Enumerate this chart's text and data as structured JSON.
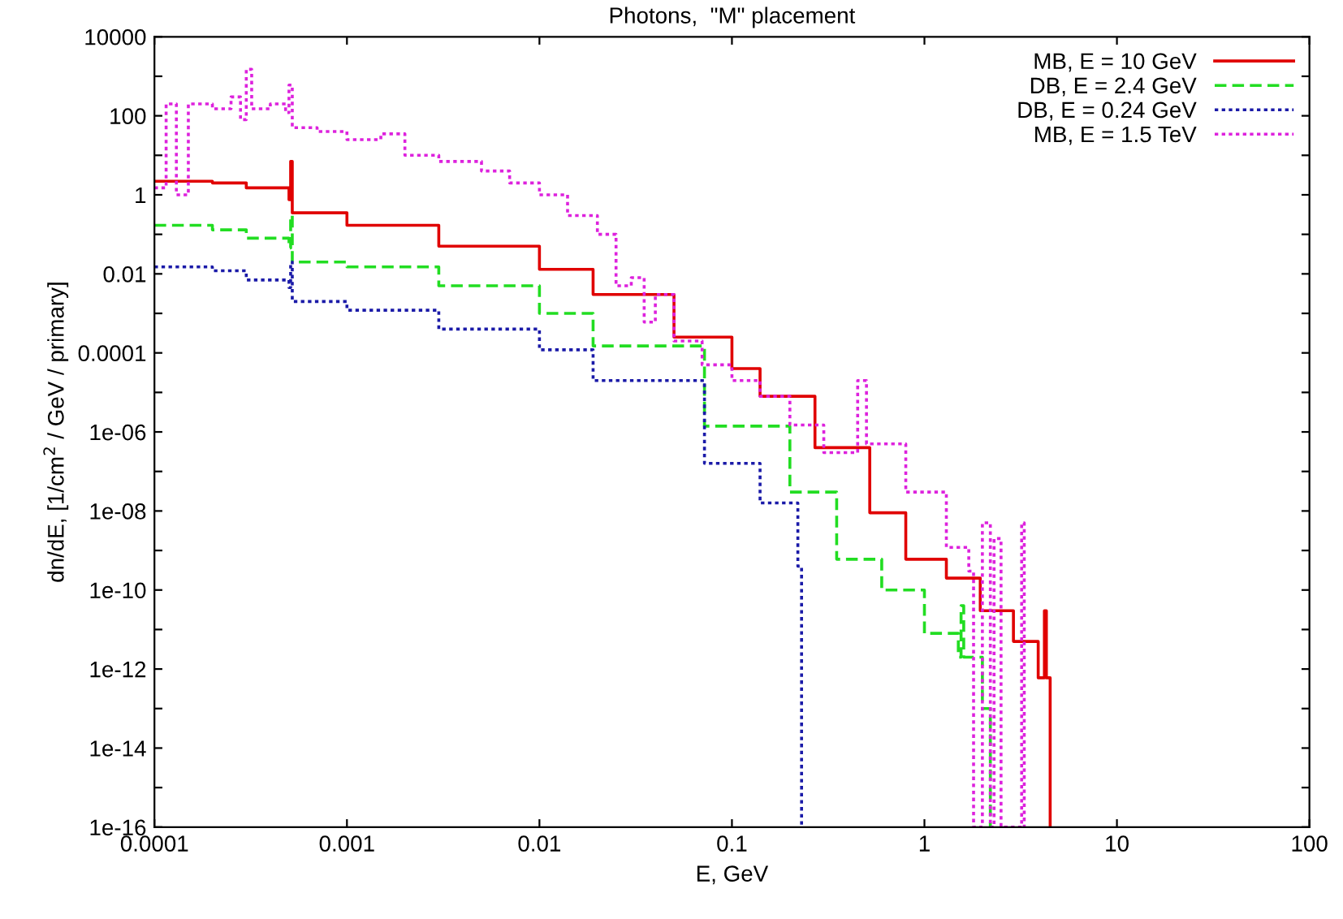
{
  "chart_data": {
    "type": "step",
    "title": "Photons,  \"M\" placement",
    "xlabel": "E, GeV",
    "ylabel": "dn/dE, [1/cm$^{2}$ / GeV / primary]",
    "log": "xy",
    "grid": false,
    "legend": "top right",
    "xlim": [
      0.0001,
      100
    ],
    "ylim": [
      1e-16,
      10000
    ],
    "xticks": [
      {
        "value": 0.0001,
        "label": "0.0001"
      },
      {
        "value": 0.001,
        "label": "0.001"
      },
      {
        "value": 0.01,
        "label": "0.01"
      },
      {
        "value": 0.1,
        "label": "0.1"
      },
      1,
      10,
      100
    ],
    "yticks": [
      10000,
      {
        "value": 1000,
        "label": null
      },
      100,
      {
        "value": 10,
        "label": null
      },
      1,
      {
        "value": 0.1,
        "label": null
      },
      {
        "value": 0.01,
        "label": "0.01"
      },
      {
        "value": 0.001,
        "label": null
      },
      {
        "value": 0.0001,
        "label": "0.0001"
      },
      {
        "value": 1e-05,
        "label": null
      },
      {
        "value": 1e-06,
        "label": "1e-06"
      },
      {
        "value": 1e-07,
        "label": null
      },
      {
        "value": 1e-08,
        "label": "1e-08"
      },
      {
        "value": 1e-09,
        "label": null
      },
      {
        "value": 1e-10,
        "label": "1e-10"
      },
      {
        "value": 1e-11,
        "label": null
      },
      {
        "value": 1e-12,
        "label": "1e-12"
      },
      {
        "value": 1e-13,
        "label": null
      },
      {
        "value": 1e-14,
        "label": "1e-14"
      },
      {
        "value": 1e-15,
        "label": null
      },
      {
        "value": 1e-16,
        "label": "1e-16"
      }
    ],
    "series": [
      {
        "name": "MB, E = 10 GeV",
        "color": "#e00000",
        "line_style": "solid",
        "x": [
          0.0001,
          0.0002,
          0.0003,
          0.0005,
          0.00051,
          0.00052,
          0.001,
          0.003,
          0.01,
          0.019,
          0.05,
          0.1,
          0.14,
          0.27,
          0.52,
          0.8,
          1.3,
          1.95,
          2.9,
          3.9,
          4.2,
          4.3,
          4.5
        ],
        "values": [
          2.2,
          2.0,
          1.5,
          0.75,
          7,
          0.35,
          0.17,
          0.05,
          0.013,
          0.003,
          0.00025,
          4e-05,
          8e-06,
          4e-07,
          9e-09,
          6e-10,
          2e-10,
          3e-11,
          5e-12,
          6e-13,
          3e-11,
          6e-13,
          1e-16
        ]
      },
      {
        "name": "DB, E = 2.4 GeV",
        "color": "#22dd22",
        "line_style": "dashed",
        "x": [
          0.0001,
          0.0002,
          0.0003,
          0.0005,
          0.00051,
          0.00052,
          0.001,
          0.003,
          0.01,
          0.019,
          0.072,
          0.2,
          0.35,
          0.6,
          1.0,
          1.5,
          1.55,
          1.6,
          2.0,
          2.2
        ],
        "values": [
          0.17,
          0.13,
          0.08,
          0.045,
          0.3,
          0.02,
          0.015,
          0.005,
          0.001,
          0.00015,
          1.4e-06,
          3e-08,
          6e-10,
          1e-10,
          8e-12,
          2e-12,
          4e-11,
          2e-12,
          1e-13,
          1e-16
        ]
      },
      {
        "name": "DB, E = 0.24 GeV",
        "color": "#1a1aa8",
        "line_style": "dotted",
        "x": [
          0.0001,
          0.0002,
          0.0003,
          0.0005,
          0.00051,
          0.00052,
          0.001,
          0.003,
          0.01,
          0.019,
          0.072,
          0.14,
          0.22,
          0.23
        ],
        "values": [
          0.015,
          0.012,
          0.007,
          0.0045,
          0.02,
          0.002,
          0.0012,
          0.0004,
          0.00012,
          2e-05,
          1.6e-07,
          1.6e-08,
          4e-10,
          1e-16
        ]
      },
      {
        "name": "MB, E = 1.5 TeV",
        "color": "#dd22dd",
        "line_style": "dotted",
        "x": [
          0.0001,
          0.000115,
          0.00013,
          0.00015,
          0.0002,
          0.00025,
          0.00028,
          0.0003,
          0.00032,
          0.0004,
          0.00048,
          0.0005,
          0.00052,
          0.0007,
          0.001,
          0.0015,
          0.002,
          0.003,
          0.005,
          0.007,
          0.01,
          0.014,
          0.02,
          0.025,
          0.03,
          0.035,
          0.04,
          0.05,
          0.07,
          0.1,
          0.14,
          0.2,
          0.3,
          0.45,
          0.5,
          0.8,
          1.3,
          1.7,
          1.8,
          2.0,
          2.2,
          2.3,
          2.5,
          3.2,
          3.3
        ],
        "values": [
          1.5,
          200,
          1,
          200,
          150,
          300,
          80,
          1500,
          150,
          200,
          120,
          600,
          50,
          40,
          25,
          35,
          10,
          7,
          4,
          2,
          1,
          0.3,
          0.1,
          0.005,
          0.008,
          0.0006,
          0.003,
          0.0002,
          5e-05,
          2e-05,
          8e-06,
          1.5e-06,
          3e-07,
          2e-05,
          5e-07,
          3e-08,
          1.2e-09,
          3e-10,
          1e-16,
          5e-09,
          1e-16,
          2e-09,
          1e-16,
          5e-09,
          1e-16
        ]
      }
    ]
  }
}
